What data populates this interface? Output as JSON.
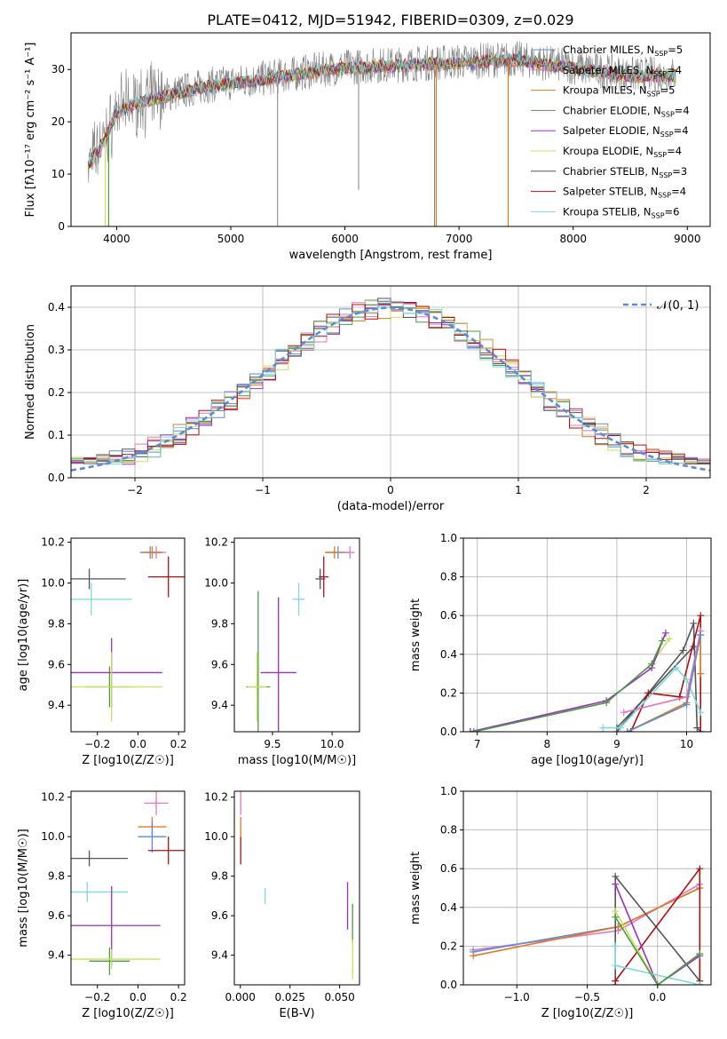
{
  "figure": {
    "title": "PLATE=0412, MJD=51942, FIBERID=0309, z=0.029"
  },
  "series_colors": {
    "Chabrier MILES": "#5b8bd6",
    "Salpeter MILES": "#e377c2",
    "Kroupa MILES": "#e07a1f",
    "Chabrier ELODIE": "#4a9a4a",
    "Salpeter ELODIE": "#9b30c0",
    "Kroupa ELODIE": "#c8e05a",
    "Chabrier STELIB": "#555555",
    "Salpeter STELIB": "#b01010",
    "Kroupa STELIB": "#7fd8dc"
  },
  "chart_data": [
    {
      "id": "spectrum",
      "type": "line",
      "title": "PLATE=0412, MJD=51942, FIBERID=0309, z=0.029",
      "xlabel": "wavelength [Angstrom, rest frame]",
      "ylabel": "Flux [fλ10⁻¹⁷ erg cm⁻² s⁻¹ A⁻¹]",
      "xlim": [
        3600,
        9200
      ],
      "ylim": [
        0,
        37
      ],
      "xticks": [
        4000,
        5000,
        6000,
        7000,
        8000,
        9000
      ],
      "yticks": [
        0,
        10,
        20,
        30
      ],
      "grid": false,
      "legend_position": "top-right",
      "legend": [
        {
          "name": "Chabrier MILES",
          "label": "Chabrier MILES, N",
          "sub": "SSP",
          "suffix": "=5"
        },
        {
          "name": "Salpeter MILES",
          "label": "Salpeter MILES, N",
          "sub": "SSP",
          "suffix": "=4"
        },
        {
          "name": "Kroupa MILES",
          "label": "Kroupa MILES, N",
          "sub": "SSP",
          "suffix": "=5"
        },
        {
          "name": "Chabrier ELODIE",
          "label": "Chabrier ELODIE, N",
          "sub": "SSP",
          "suffix": "=4"
        },
        {
          "name": "Salpeter ELODIE",
          "label": "Salpeter ELODIE, N",
          "sub": "SSP",
          "suffix": "=4"
        },
        {
          "name": "Kroupa ELODIE",
          "label": "Kroupa ELODIE, N",
          "sub": "SSP",
          "suffix": "=4"
        },
        {
          "name": "Chabrier STELIB",
          "label": "Chabrier STELIB, N",
          "sub": "SSP",
          "suffix": "=3"
        },
        {
          "name": "Salpeter STELIB",
          "label": "Salpeter STELIB, N",
          "sub": "SSP",
          "suffix": "=4"
        },
        {
          "name": "Kroupa STELIB",
          "label": "Kroupa STELIB, N",
          "sub": "SSP",
          "suffix": "=6"
        }
      ],
      "observed_color": "#808080",
      "continuum": [
        [
          3750,
          12
        ],
        [
          3900,
          17
        ],
        [
          4000,
          22
        ],
        [
          4200,
          24
        ],
        [
          4400,
          25
        ],
        [
          4600,
          26
        ],
        [
          4800,
          27
        ],
        [
          5000,
          27.5
        ],
        [
          5200,
          28
        ],
        [
          5500,
          29
        ],
        [
          5800,
          30
        ],
        [
          6000,
          30.5
        ],
        [
          6500,
          31
        ],
        [
          7000,
          31.5
        ],
        [
          7500,
          32
        ],
        [
          8000,
          30.5
        ],
        [
          8500,
          29
        ],
        [
          8900,
          29
        ]
      ],
      "absorption_lines": [
        {
          "name": "Kroupa ELODIE",
          "x": 3900,
          "depth": 0
        },
        {
          "name": "Chabrier ELODIE",
          "x": 3930,
          "depth": 0
        },
        {
          "name": "Kroupa MILES",
          "x": 6800,
          "depth": 0
        },
        {
          "name": "Kroupa MILES",
          "x": 7430,
          "depth": 0
        }
      ],
      "observed_spikes": [
        {
          "x": 5410,
          "y": 0
        },
        {
          "x": 6120,
          "y": 7
        },
        {
          "x": 6785,
          "y": 0
        }
      ]
    },
    {
      "id": "residuals",
      "type": "line",
      "xlabel": "(data-model)/error",
      "ylabel": "Normed distribution",
      "xlim": [
        -2.5,
        2.5
      ],
      "ylim": [
        0,
        0.45
      ],
      "xticks": [
        -2,
        -1,
        0,
        1,
        2
      ],
      "yticks": [
        0.0,
        0.1,
        0.2,
        0.3,
        0.4
      ],
      "grid": true,
      "legend_position": "top-right",
      "legend": [
        {
          "name": "N(0,1)",
          "label": "𝒩(0, 1)"
        }
      ],
      "gaussian": {
        "mean": 0,
        "sigma": 1,
        "color": "#5b8bd6",
        "dash": "6,4"
      },
      "bin_width": 0.1
    },
    {
      "id": "age-vs-Z",
      "type": "scatter",
      "xlabel": "Z [log10(Z/Z☉)]",
      "ylabel": "age [log10(age/yr)]",
      "xlim": [
        -0.33,
        0.23
      ],
      "ylim": [
        9.27,
        10.22
      ],
      "xticks": [
        -0.2,
        0.0,
        0.2
      ],
      "yticks": [
        9.4,
        9.6,
        9.8,
        10.0,
        10.2
      ],
      "grid": false,
      "points": [
        {
          "name": "Chabrier MILES",
          "x": 0.06,
          "y": 10.15,
          "xerr": 0.05,
          "yerr": 0.03
        },
        {
          "name": "Salpeter MILES",
          "x": 0.09,
          "y": 10.15,
          "xerr": 0.05,
          "yerr": 0.03
        },
        {
          "name": "Kroupa MILES",
          "x": 0.07,
          "y": 10.15,
          "xerr": 0.05,
          "yerr": 0.03
        },
        {
          "name": "Chabrier ELODIE",
          "x": -0.14,
          "y": 9.49,
          "xerr": 0.12,
          "yerr": 0.1
        },
        {
          "name": "Salpeter ELODIE",
          "x": -0.13,
          "y": 9.56,
          "xerr": 0.25,
          "yerr": 0.17
        },
        {
          "name": "Kroupa ELODIE",
          "x": -0.13,
          "y": 9.49,
          "xerr": 0.25,
          "yerr": 0.17
        },
        {
          "name": "Chabrier STELIB",
          "x": -0.24,
          "y": 10.02,
          "xerr": 0.18,
          "yerr": 0.05
        },
        {
          "name": "Salpeter STELIB",
          "x": 0.15,
          "y": 10.03,
          "xerr": 0.1,
          "yerr": 0.1
        },
        {
          "name": "Kroupa STELIB",
          "x": -0.23,
          "y": 9.92,
          "xerr": 0.2,
          "yerr": 0.08
        }
      ]
    },
    {
      "id": "age-vs-mass",
      "type": "scatter",
      "xlabel": "mass [log10(M/M☉)]",
      "ylabel": "",
      "xlim": [
        9.18,
        10.23
      ],
      "ylim": [
        9.27,
        10.22
      ],
      "xticks": [
        9.5,
        10.0
      ],
      "yticks": [
        9.4,
        9.6,
        9.8,
        10.0,
        10.2
      ],
      "grid": false,
      "points": [
        {
          "name": "Chabrier MILES",
          "x": 10.05,
          "y": 10.15,
          "xerr": 0.1,
          "yerr": 0.03
        },
        {
          "name": "Salpeter MILES",
          "x": 10.15,
          "y": 10.15,
          "xerr": 0.04,
          "yerr": 0.03
        },
        {
          "name": "Kroupa MILES",
          "x": 10.02,
          "y": 10.15,
          "xerr": 0.08,
          "yerr": 0.03
        },
        {
          "name": "Chabrier ELODIE",
          "x": 9.38,
          "y": 9.49,
          "xerr": 0.1,
          "yerr": 0.47
        },
        {
          "name": "Salpeter ELODIE",
          "x": 9.55,
          "y": 9.56,
          "xerr": 0.15,
          "yerr": 0.37
        },
        {
          "name": "Kroupa ELODIE",
          "x": 9.37,
          "y": 9.49,
          "xerr": 0.08,
          "yerr": 0.17
        },
        {
          "name": "Chabrier STELIB",
          "x": 9.9,
          "y": 10.02,
          "xerr": 0.04,
          "yerr": 0.05
        },
        {
          "name": "Salpeter STELIB",
          "x": 9.93,
          "y": 10.03,
          "xerr": 0.04,
          "yerr": 0.1
        },
        {
          "name": "Kroupa STELIB",
          "x": 9.72,
          "y": 9.92,
          "xerr": 0.05,
          "yerr": 0.08
        }
      ]
    },
    {
      "id": "weight-vs-age",
      "type": "line",
      "xlabel": "age [log10(age/yr)]",
      "ylabel": "mass weight",
      "xlim": [
        6.8,
        10.35
      ],
      "ylim": [
        0,
        1.0
      ],
      "xticks": [
        7,
        8,
        9,
        10
      ],
      "yticks": [
        0.0,
        0.2,
        0.4,
        0.6,
        0.8,
        1.0
      ],
      "grid": true,
      "series": [
        {
          "name": "Kroupa ELODIE",
          "x": [
            6.9,
            8.85,
            9.5,
            9.75
          ],
          "y": [
            0.0,
            0.15,
            0.35,
            0.48
          ]
        },
        {
          "name": "Salpeter ELODIE",
          "x": [
            6.9,
            8.85,
            9.5,
            9.7
          ],
          "y": [
            0.0,
            0.16,
            0.33,
            0.51
          ]
        },
        {
          "name": "Chabrier ELODIE",
          "x": [
            6.95,
            8.85,
            9.5,
            9.65
          ],
          "y": [
            0.0,
            0.15,
            0.35,
            0.47
          ]
        },
        {
          "name": "Chabrier STELIB",
          "x": [
            9.0,
            9.95,
            10.1,
            10.15,
            10.2
          ],
          "y": [
            0.0,
            0.42,
            0.56,
            0.02,
            0.0
          ]
        },
        {
          "name": "Chabrier STELIB",
          "x": [
            9.0,
            10.1
          ],
          "y": [
            0.02,
            0.44
          ]
        },
        {
          "name": "Salpeter STELIB",
          "x": [
            9.2,
            9.45,
            9.9,
            10.2,
            10.2
          ],
          "y": [
            0.0,
            0.2,
            0.18,
            0.6,
            0.0
          ]
        },
        {
          "name": "Kroupa STELIB",
          "x": [
            8.8,
            9.05,
            9.85,
            10.0,
            10.2
          ],
          "y": [
            0.02,
            0.02,
            0.33,
            0.27,
            0.1
          ]
        },
        {
          "name": "Salpeter MILES",
          "x": [
            9.1,
            10.0,
            10.2
          ],
          "y": [
            0.1,
            0.18,
            0.52
          ]
        },
        {
          "name": "Kroupa MILES",
          "x": [
            9.15,
            10.0,
            10.2,
            10.2
          ],
          "y": [
            0.0,
            0.15,
            0.5,
            0.3
          ]
        },
        {
          "name": "Chabrier MILES",
          "x": [
            9.15,
            10.0,
            10.2
          ],
          "y": [
            0.0,
            0.14,
            0.5
          ]
        }
      ]
    },
    {
      "id": "mass-vs-Z",
      "type": "scatter",
      "xlabel": "Z [log10(Z/Z☉)]",
      "ylabel": "mass [log10(M/M☉)]",
      "xlim": [
        -0.33,
        0.23
      ],
      "ylim": [
        9.25,
        10.23
      ],
      "xticks": [
        -0.2,
        0.0,
        0.2
      ],
      "yticks": [
        9.4,
        9.6,
        9.8,
        10.0,
        10.2
      ],
      "grid": false,
      "points": [
        {
          "name": "Salpeter MILES",
          "x": 0.09,
          "y": 10.17,
          "xerr": 0.06,
          "yerr": 0.06
        },
        {
          "name": "Kroupa MILES",
          "x": 0.07,
          "y": 10.05,
          "xerr": 0.07,
          "yerr": 0.05
        },
        {
          "name": "Chabrier MILES",
          "x": 0.07,
          "y": 10.0,
          "xerr": 0.07,
          "yerr": 0.08
        },
        {
          "name": "Salpeter STELIB",
          "x": 0.15,
          "y": 9.93,
          "xerr": 0.1,
          "yerr": 0.07
        },
        {
          "name": "Chabrier STELIB",
          "x": -0.24,
          "y": 9.89,
          "xerr": 0.19,
          "yerr": 0.04
        },
        {
          "name": "Kroupa STELIB",
          "x": -0.25,
          "y": 9.72,
          "xerr": 0.2,
          "yerr": 0.05
        },
        {
          "name": "Salpeter ELODIE",
          "x": -0.13,
          "y": 9.55,
          "xerr": 0.24,
          "yerr": 0.2
        },
        {
          "name": "Chabrier ELODIE",
          "x": -0.14,
          "y": 9.37,
          "xerr": 0.1,
          "yerr": 0.07
        },
        {
          "name": "Kroupa ELODIE",
          "x": -0.13,
          "y": 9.38,
          "xerr": 0.24,
          "yerr": 0.05
        }
      ]
    },
    {
      "id": "mass-vs-ebv",
      "type": "scatter",
      "xlabel": "E(B-V)",
      "ylabel": "",
      "xlim": [
        -0.003,
        0.06
      ],
      "ylim": [
        9.25,
        10.23
      ],
      "xticks": [
        0.0,
        0.025,
        0.05
      ],
      "yticks": [
        9.4,
        9.6,
        9.8,
        10.0,
        10.2
      ],
      "grid": false,
      "points": [
        {
          "name": "Salpeter MILES",
          "x": 0.0002,
          "y": 10.17,
          "xerr": 0,
          "yerr": 0.06
        },
        {
          "name": "Kroupa MILES",
          "x": 0.0002,
          "y": 10.05,
          "xerr": 0,
          "yerr": 0.05
        },
        {
          "name": "Salpeter STELIB",
          "x": 0.0002,
          "y": 9.93,
          "xerr": 0,
          "yerr": 0.07
        },
        {
          "name": "Kroupa STELIB",
          "x": 0.0125,
          "y": 9.7,
          "xerr": 0,
          "yerr": 0.04
        },
        {
          "name": "Salpeter ELODIE",
          "x": 0.054,
          "y": 9.65,
          "xerr": 0,
          "yerr": 0.12
        },
        {
          "name": "Chabrier ELODIE",
          "x": 0.0565,
          "y": 9.56,
          "xerr": 0,
          "yerr": 0.1
        },
        {
          "name": "Kroupa ELODIE",
          "x": 0.0565,
          "y": 9.38,
          "xerr": 0,
          "yerr": 0.1
        }
      ]
    },
    {
      "id": "weight-vs-Z",
      "type": "line",
      "xlabel": "Z [log10(Z/Z☉)]",
      "ylabel": "mass weight",
      "xlim": [
        -1.38,
        0.38
      ],
      "ylim": [
        0,
        1.0
      ],
      "xticks": [
        -1.0,
        -0.5,
        0.0
      ],
      "yticks": [
        0.0,
        0.2,
        0.4,
        0.6,
        0.8,
        1.0
      ],
      "grid": true,
      "series": [
        {
          "name": "Salpeter MILES",
          "x": [
            -1.31,
            -0.28,
            0.3
          ],
          "y": [
            0.18,
            0.28,
            0.52
          ]
        },
        {
          "name": "Chabrier MILES",
          "x": [
            -1.31,
            -0.28,
            0.3
          ],
          "y": [
            0.17,
            0.3,
            0.5
          ]
        },
        {
          "name": "Kroupa MILES",
          "x": [
            -1.31,
            -0.28,
            0.3,
            0.3
          ],
          "y": [
            0.15,
            0.3,
            0.5,
            0.0
          ]
        },
        {
          "name": "Chabrier STELIB",
          "x": [
            -0.3,
            -0.3,
            0.3
          ],
          "y": [
            0.0,
            0.56,
            0.02
          ]
        },
        {
          "name": "Salpeter STELIB",
          "x": [
            -0.3,
            0.3,
            0.3
          ],
          "y": [
            0.02,
            0.6,
            0.0
          ]
        },
        {
          "name": "Salpeter ELODIE",
          "x": [
            -0.3,
            0.0,
            0.3
          ],
          "y": [
            0.52,
            0.0,
            0.15
          ]
        },
        {
          "name": "Kroupa ELODIE",
          "x": [
            -0.3,
            0.0,
            0.3
          ],
          "y": [
            0.38,
            0.0,
            0.16
          ]
        },
        {
          "name": "Kroupa STELIB",
          "x": [
            -0.3,
            -0.3,
            0.3
          ],
          "y": [
            0.2,
            0.1,
            0.0
          ]
        },
        {
          "name": "Chabrier ELODIE",
          "x": [
            -0.3,
            0.0,
            0.3
          ],
          "y": [
            0.35,
            0.0,
            0.16
          ]
        }
      ]
    }
  ]
}
